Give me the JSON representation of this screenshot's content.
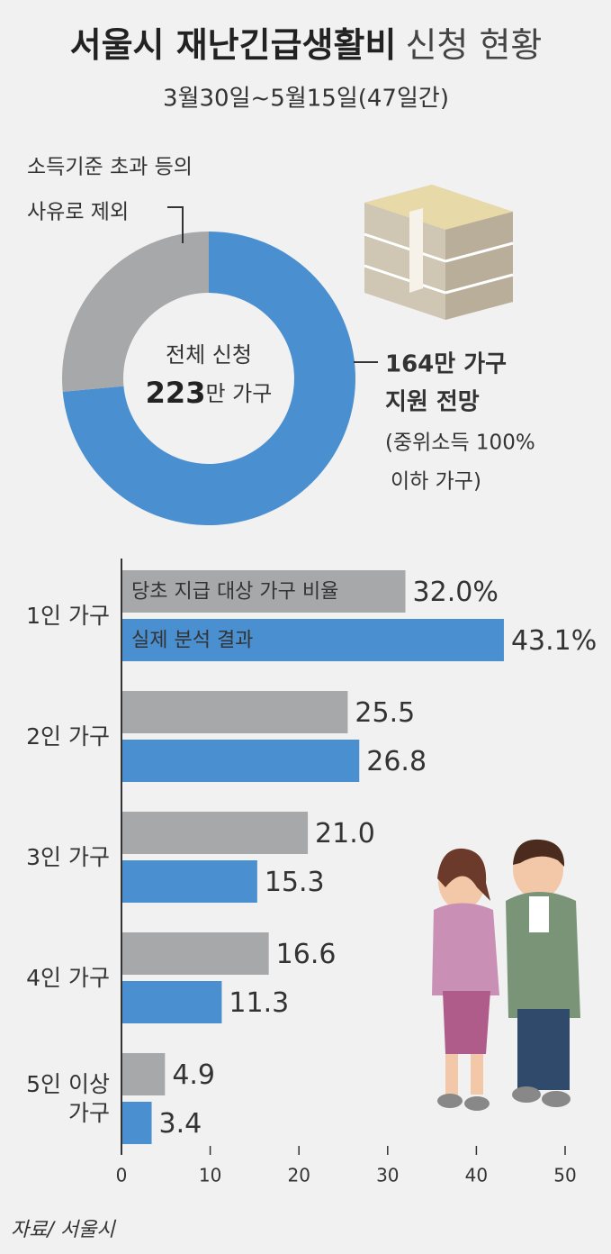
{
  "header": {
    "title_bold": "서울시 재난긴급생활비",
    "title_light": "신청 현황",
    "subtitle": "3월30일~5월15일(47일간)"
  },
  "chart_data": [
    {
      "type": "donut",
      "center_title": "전체 신청",
      "center_value": 223,
      "center_unit": "만 가구",
      "values": [
        164,
        59
      ],
      "colors": [
        "#4a8fd0",
        "#a7a8aa"
      ],
      "labels": [
        [
          "164만 가구",
          "지원 전망",
          "(중위소득 100%",
          "이하 가구)"
        ],
        [
          "소득기준 초과 등의",
          "사유로 제외"
        ]
      ]
    },
    {
      "type": "hbar",
      "categories": [
        "1인 가구",
        "2인 가구",
        "3인 가구",
        "4인 가구",
        "5인 이상 가구"
      ],
      "series": [
        {
          "name": "당초 지급 대상 가구 비율",
          "color": "#a7a8aa",
          "values": [
            32.0,
            25.5,
            21.0,
            16.6,
            4.9
          ],
          "value_labels": [
            "32.0%",
            "25.5",
            "21.0",
            "16.6",
            "4.9"
          ]
        },
        {
          "name": "실제 분석 결과",
          "color": "#4a8fd0",
          "values": [
            43.1,
            26.8,
            15.3,
            11.3,
            3.4
          ],
          "value_labels": [
            "43.1%",
            "26.8",
            "15.3",
            "11.3",
            "3.4"
          ]
        }
      ],
      "xlim": [
        0,
        50
      ],
      "xticks": [
        0,
        10,
        20,
        30,
        40,
        50
      ]
    }
  ],
  "source": "자료/ 서울시"
}
